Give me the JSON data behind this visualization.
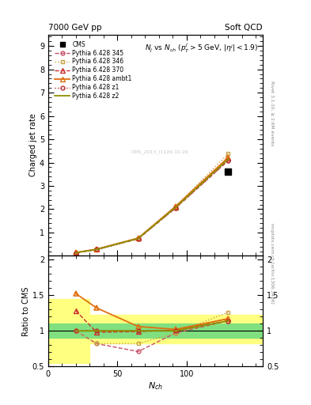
{
  "title": "7000 GeV pp",
  "title_right": "Soft QCD",
  "inner_title": "$N_j$ vs $N_{ch}$ ($p_T^j$$>$5 GeV, $|\\eta^j|$$<$1.9)",
  "ylabel_top": "Charged jet rate",
  "ylabel_bottom": "Ratio to CMS",
  "xlabel": "$N_{ch}$",
  "watermark": "CMS_2013_I1126.10.26",
  "right_text1": "Rivet 3.1.10, ≥ 2.6M events",
  "right_text2": "mcplots.cern.ch [arXiv:1306.3436]",
  "cms_x": [
    130
  ],
  "cms_y": [
    3.6
  ],
  "xvals": [
    20,
    35,
    65,
    92,
    130
  ],
  "p345_y": [
    0.13,
    0.27,
    0.73,
    2.05,
    4.08
  ],
  "p346_y": [
    0.13,
    0.28,
    0.77,
    2.12,
    4.38
  ],
  "p370_y": [
    0.14,
    0.28,
    0.75,
    2.1,
    4.2
  ],
  "ambt1_y": [
    0.14,
    0.285,
    0.76,
    2.12,
    4.22
  ],
  "z1_y": [
    0.13,
    0.27,
    0.73,
    2.05,
    4.1
  ],
  "z2_y": [
    0.135,
    0.275,
    0.745,
    2.08,
    4.15
  ],
  "ratio_345_y": [
    1.0,
    0.82,
    0.71,
    0.97,
    1.14
  ],
  "ratio_346_y": [
    1.0,
    0.82,
    0.82,
    0.97,
    1.26
  ],
  "ratio_370_y": [
    1.28,
    0.98,
    0.99,
    1.01,
    1.17
  ],
  "ratio_ambt1_y": [
    1.52,
    1.32,
    1.06,
    1.02,
    1.17
  ],
  "ratio_z1_y": [
    1.0,
    1.0,
    1.0,
    1.0,
    1.14
  ],
  "ratio_z2_y": [
    1.0,
    1.0,
    1.0,
    1.0,
    1.14
  ],
  "color_345": "#c85068",
  "color_346": "#c8a040",
  "color_370": "#c83030",
  "color_ambt1": "#e07010",
  "color_z1": "#b83030",
  "color_z2": "#909000",
  "yellow_color": "#ffff80",
  "green_color": "#80e080"
}
